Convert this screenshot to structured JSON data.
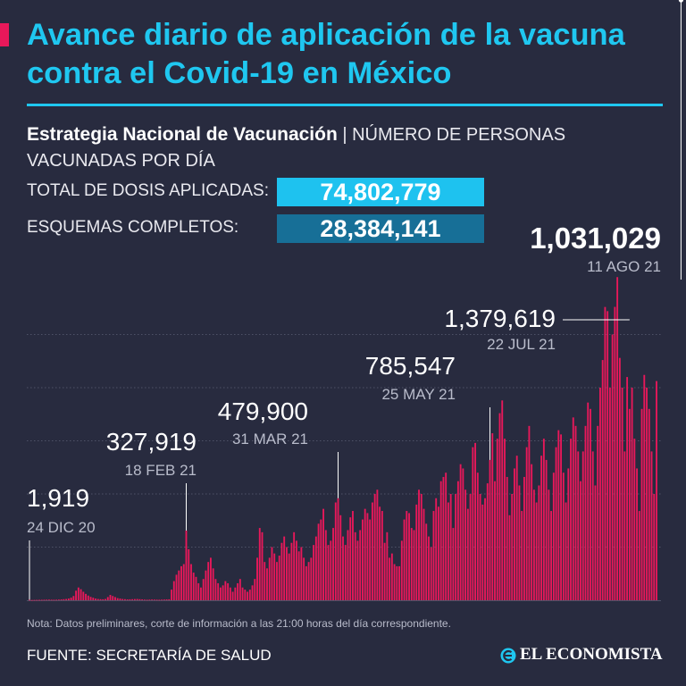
{
  "header": {
    "title": "Avance diario de aplicación de la vacuna contra el Covid-19 en México",
    "subtitle_bold": "Estrategia Nacional de Vacunación",
    "subtitle_rest": " | NÚMERO DE PERSONAS VACUNADAS POR DÍA"
  },
  "stats": {
    "total_label": "TOTAL DE DOSIS APLICADAS:",
    "total_value": "74,802,779",
    "complete_label": "ESQUEMAS COMPLETOS:",
    "complete_value": "28,384,141"
  },
  "chart_data": {
    "type": "bar",
    "start_date": "2020-12-24",
    "end_date": "2021-08-11",
    "ylim": [
      0,
      1500000
    ],
    "grid": true,
    "gridlines": [
      250000,
      500000,
      750000,
      1000000,
      1250000
    ],
    "bar_color": "#e8185a",
    "values": [
      1919,
      1200,
      1500,
      1800,
      2000,
      2200,
      2500,
      2800,
      3000,
      2600,
      2400,
      2700,
      3200,
      4000,
      5000,
      6000,
      8000,
      12000,
      20000,
      45000,
      60000,
      52000,
      40000,
      30000,
      22000,
      16000,
      12000,
      8000,
      6000,
      5000,
      4500,
      6000,
      15000,
      25000,
      20000,
      15000,
      10000,
      8000,
      6000,
      5000,
      4000,
      4500,
      5000,
      5500,
      6000,
      5000,
      4000,
      3000,
      2500,
      3000,
      3500,
      3200,
      2800,
      2500,
      3000,
      3500,
      4000,
      4500,
      50000,
      90000,
      120000,
      140000,
      160000,
      170000,
      327919,
      240000,
      170000,
      130000,
      110000,
      80000,
      60000,
      100000,
      140000,
      180000,
      200000,
      150000,
      100000,
      80000,
      60000,
      70000,
      90000,
      80000,
      60000,
      40000,
      60000,
      80000,
      100000,
      60000,
      50000,
      40000,
      50000,
      70000,
      100000,
      200000,
      340000,
      320000,
      180000,
      150000,
      200000,
      250000,
      220000,
      180000,
      210000,
      270000,
      300000,
      250000,
      220000,
      270000,
      320000,
      280000,
      230000,
      250000,
      200000,
      160000,
      180000,
      200000,
      260000,
      300000,
      360000,
      380000,
      430000,
      330000,
      260000,
      280000,
      340000,
      460000,
      479900,
      400000,
      300000,
      260000,
      330000,
      390000,
      420000,
      320000,
      280000,
      330000,
      380000,
      430000,
      410000,
      380000,
      460000,
      500000,
      520000,
      440000,
      420000,
      270000,
      320000,
      200000,
      220000,
      170000,
      160000,
      160000,
      280000,
      380000,
      420000,
      410000,
      340000,
      330000,
      450000,
      520000,
      500000,
      430000,
      360000,
      300000,
      250000,
      420000,
      480000,
      440000,
      560000,
      580000,
      600000,
      460000,
      500000,
      340000,
      500000,
      560000,
      640000,
      620000,
      520000,
      430000,
      500000,
      720000,
      740000,
      600000,
      500000,
      450000,
      480000,
      550000,
      660000,
      785547,
      560000,
      760000,
      880000,
      940000,
      760000,
      580000,
      400000,
      500000,
      620000,
      680000,
      540000,
      420000,
      580000,
      720000,
      820000,
      640000,
      520000,
      460000,
      540000,
      680000,
      760000,
      660000,
      520000,
      420000,
      600000,
      720000,
      800000,
      780000,
      600000,
      460000,
      620000,
      760000,
      860000,
      820000,
      700000,
      560000,
      700000,
      820000,
      930000,
      900000,
      700000,
      540000,
      820000,
      1000000,
      1130000,
      1379619,
      1360000,
      1000000,
      1250000,
      1380000,
      1520000,
      1140000,
      1000000,
      700000,
      1050000,
      900000,
      1000000,
      760000,
      620000,
      420000,
      900000,
      1060000,
      1000000,
      900000,
      700000,
      500000,
      1031029
    ],
    "annotations": [
      {
        "label": "1,919",
        "date": "24 DIC 20",
        "index": 0
      },
      {
        "label": "327,919",
        "date": "18 FEB 21",
        "index": 64
      },
      {
        "label": "479,900",
        "date": "31 MAR 21",
        "index": 126
      },
      {
        "label": "785,547",
        "date": "25 MAY 21",
        "index": 188
      },
      {
        "label": "1,379,619",
        "date": "22 JUL 21",
        "index": 245
      },
      {
        "label": "1,031,029",
        "date": "11 AGO 21",
        "index": 266
      }
    ]
  },
  "footer": {
    "note": "Nota: Datos preliminares, corte de información a las 21:00 horas del día correspondiente.",
    "source": "FUENTE: SECRETARÍA DE SALUD",
    "logo": "EL ECONOMISTA",
    "logo_icon": "el-economista-e-icon"
  }
}
